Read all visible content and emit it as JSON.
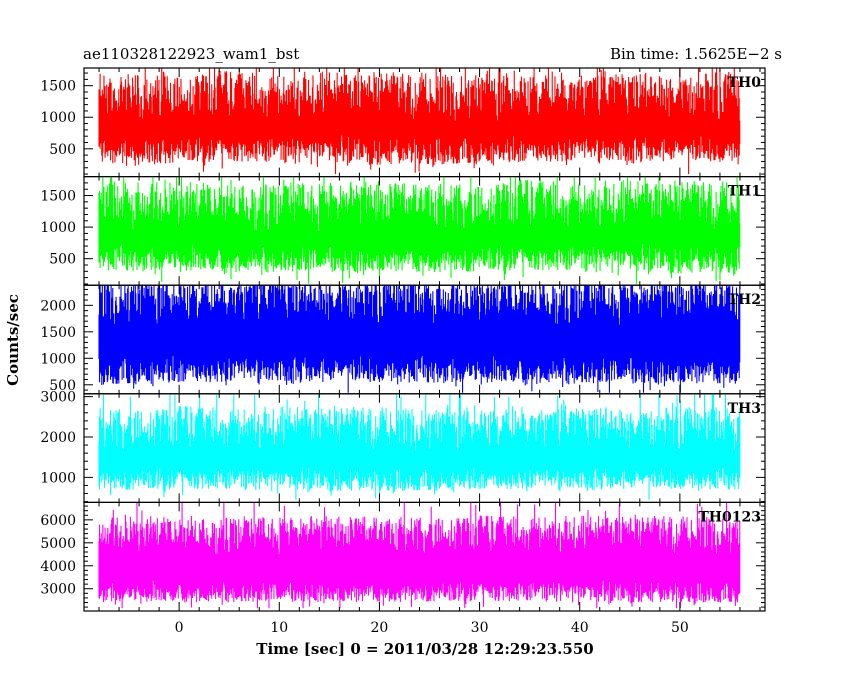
{
  "header": {
    "left_title": "ae110328122923_wam1_bst",
    "right_title": "Bin time: 1.5625E−2 s"
  },
  "chart_data": {
    "type": "line",
    "title": "ae110328122923_wam1_bst",
    "subtitle": "Bin time: 1.5625E−2 s",
    "xlabel": "Time [sec] 0 = 2011/03/28 12:29:23.550",
    "ylabel": "Counts/sec",
    "xlim": [
      -9.5,
      58.5
    ],
    "x_ticks": [
      0,
      10,
      20,
      30,
      40,
      50
    ],
    "x_tick_labels": [
      "0",
      "10",
      "20",
      "30",
      "40",
      "50"
    ],
    "data_range": [
      -8,
      56
    ],
    "grid": false,
    "panels": [
      {
        "name": "TH0",
        "color": "#ff0000",
        "ylim": [
          60,
          1780
        ],
        "y_ticks": [
          500,
          1000,
          1500
        ],
        "y_tick_labels": [
          "500",
          "1000",
          "1500"
        ],
        "level": [
          700,
          950
        ],
        "spread": [
          420,
          760
        ],
        "floor": 100,
        "series": [
          {
            "name": "TH0",
            "x_start": -8,
            "x_end": 56,
            "mean": 890,
            "min": 130,
            "max": 1780
          }
        ]
      },
      {
        "name": "TH1",
        "color": "#00ff00",
        "ylim": [
          80,
          1800
        ],
        "y_ticks": [
          500,
          1000,
          1500
        ],
        "y_tick_labels": [
          "500",
          "1000",
          "1500"
        ],
        "level": [
          720,
          950
        ],
        "spread": [
          420,
          780
        ],
        "floor": 100,
        "series": [
          {
            "name": "TH1",
            "x_start": -8,
            "x_end": 56,
            "mean": 900,
            "min": 150,
            "max": 1800
          }
        ]
      },
      {
        "name": "TH2",
        "color": "#0000ff",
        "ylim": [
          330,
          2380
        ],
        "y_ticks": [
          500,
          1000,
          1500,
          2000
        ],
        "y_tick_labels": [
          "500",
          "1000",
          "1500",
          "2000"
        ],
        "level": [
          1050,
          1650
        ],
        "spread": [
          520,
          860
        ],
        "floor": 350,
        "series": [
          {
            "name": "TH2",
            "x_start": -8,
            "x_end": 56,
            "mean": 1350,
            "min": 400,
            "max": 2380
          }
        ]
      },
      {
        "name": "TH3",
        "color": "#00ffff",
        "ylim": [
          380,
          3070
        ],
        "y_ticks": [
          1000,
          2000,
          3000
        ],
        "y_tick_labels": [
          "1000",
          "2000",
          "3000"
        ],
        "level": [
          1250,
          1650
        ],
        "spread": [
          560,
          1100
        ],
        "floor": 450,
        "series": [
          {
            "name": "TH3",
            "x_start": -8,
            "x_end": 56,
            "mean": 1550,
            "min": 500,
            "max": 3000
          }
        ]
      },
      {
        "name": "TH0123",
        "color": "#ff00ff",
        "ylim": [
          2030,
          6760
        ],
        "y_ticks": [
          3000,
          4000,
          5000,
          6000
        ],
        "y_tick_labels": [
          "3000",
          "4000",
          "5000",
          "6000"
        ],
        "level": [
          3350,
          4500
        ],
        "spread": [
          920,
          1680
        ],
        "floor": 2150,
        "series": [
          {
            "name": "TH0123",
            "x_start": -8,
            "x_end": 56,
            "mean": 4200,
            "min": 2300,
            "max": 6600
          }
        ]
      }
    ]
  }
}
